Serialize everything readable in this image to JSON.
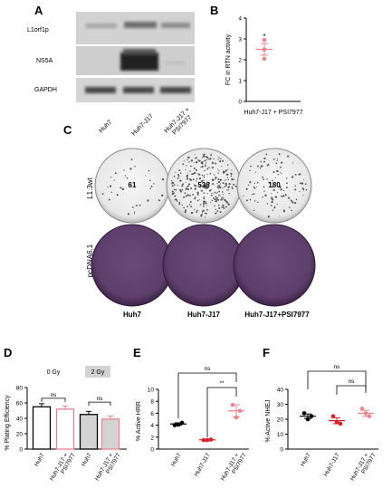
{
  "panels": {
    "A": {
      "letter": "A",
      "rows": [
        "L1orf1p",
        "NS5A",
        "GAPDH"
      ],
      "lanes": [
        "Huh7",
        "Huh7-J17",
        "Huh7-J17 +",
        "PSI7977"
      ]
    },
    "B": {
      "letter": "B"
    },
    "C": {
      "letter": "C",
      "row_labels": [
        "L1.3wt",
        "pcDNA6.1"
      ],
      "colony_counts": [
        "61",
        "536",
        "180"
      ],
      "col_labels": [
        "Huh7",
        "Huh7-J17",
        "Huh7-J17+PSI7977"
      ]
    },
    "D": {
      "letter": "D",
      "dose_labels": [
        "0 Gy",
        "2 Gy"
      ]
    },
    "E": {
      "letter": "E"
    },
    "F": {
      "letter": "F"
    }
  },
  "chart_data": [
    {
      "panel": "B",
      "type": "scatter",
      "ylabel": "FC in RTN activity",
      "xlabel": "Huh7-J17 + PSI7977",
      "ylim": [
        0,
        4
      ],
      "yticks": [
        "0",
        "1",
        "2",
        "3",
        "4"
      ],
      "points": [
        2.95,
        2.5,
        2.05
      ],
      "mean": 2.5,
      "sem": 0.28,
      "annotation": "*",
      "color": "#e8858f"
    },
    {
      "panel": "D",
      "type": "bar",
      "ylabel": "% Plating Efficiency",
      "ylim": [
        0,
        80
      ],
      "yticks": [
        "0",
        "20",
        "40",
        "60",
        "80"
      ],
      "categories": [
        "Huh7",
        "Huh7-J17 +",
        "Huh7",
        "Huh7-J17 +"
      ],
      "categories2": [
        "",
        "PSI7977",
        "",
        "PSI7977"
      ],
      "values": [
        55,
        52,
        45,
        39
      ],
      "errors": [
        4,
        4,
        4,
        4
      ],
      "fills": [
        "#ffffff",
        "#ffffff",
        "#d3d3d3",
        "#d3d3d3"
      ],
      "strokes": [
        "#000000",
        "#e8858f",
        "#000000",
        "#e8858f"
      ],
      "groups": [
        "0 Gy",
        "2 Gy"
      ],
      "significance": [
        "ns",
        "ns"
      ]
    },
    {
      "panel": "E",
      "type": "scatter",
      "ylabel": "% Active HRR",
      "ylim": [
        0,
        10
      ],
      "yticks": [
        "0",
        "2",
        "4",
        "6",
        "8",
        "10"
      ],
      "categories": [
        "Huh7",
        "Huh7-J17",
        "Huh7-J17 +"
      ],
      "categories2": [
        "",
        "",
        "PSI7977"
      ],
      "points": [
        [
          4.0,
          4.4,
          4.1
        ],
        [
          1.5,
          1.6,
          1.5
        ],
        [
          7.4,
          6.4,
          5.3
        ]
      ],
      "means": [
        4.2,
        1.55,
        6.4
      ],
      "sems": [
        0.2,
        0.1,
        1.0
      ],
      "colors": [
        "#000000",
        "#d6232a",
        "#e8858f"
      ],
      "significance": [
        "ns",
        "**"
      ]
    },
    {
      "panel": "F",
      "type": "scatter",
      "ylabel": "% Active NHEJ",
      "ylim": [
        0,
        40
      ],
      "yticks": [
        "0",
        "10",
        "20",
        "30",
        "40"
      ],
      "categories": [
        "Huh7",
        "Huh7-J17",
        "Huh7-J17 +"
      ],
      "categories2": [
        "",
        "",
        "PSI7977"
      ],
      "points": [
        [
          24,
          22,
          20
        ],
        [
          22,
          17,
          18
        ],
        [
          27,
          22,
          24
        ]
      ],
      "means": [
        22,
        19,
        24
      ],
      "sems": [
        1.5,
        2,
        2
      ],
      "colors": [
        "#000000",
        "#d6232a",
        "#e8858f"
      ],
      "significance": [
        "ns",
        "ns"
      ]
    }
  ]
}
